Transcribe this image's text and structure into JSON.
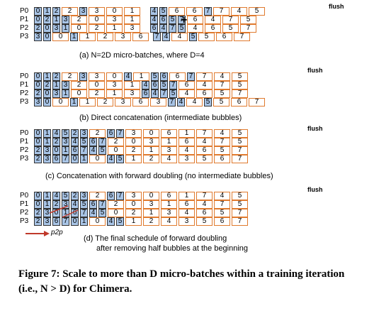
{
  "panels": [
    {
      "caption": "(a) N=2D micro-batches, where D=4",
      "flush": "flush",
      "row_labels": [
        "P0",
        "P1",
        "P2",
        "P3"
      ],
      "plus": "+",
      "rows": [
        [
          [
            "0",
            "b"
          ],
          [
            "1",
            "b"
          ],
          [
            "2",
            "b"
          ],
          [
            "2",
            "o"
          ],
          [
            "3",
            "b"
          ],
          [
            "3",
            "o"
          ],
          [
            "0",
            "o"
          ],
          [
            "1",
            "o"
          ],
          [
            "4",
            "b"
          ],
          [
            "5",
            "b"
          ],
          [
            "6",
            "o"
          ],
          [
            "6",
            "o"
          ],
          [
            "7",
            "b"
          ],
          [
            "7",
            "o"
          ],
          [
            "4",
            "o"
          ],
          [
            "5",
            "o"
          ]
        ],
        [
          [
            "0",
            "b"
          ],
          [
            "2",
            "b"
          ],
          [
            "1",
            "b"
          ],
          [
            "3",
            "b"
          ],
          [
            "2",
            "o"
          ],
          [
            "0",
            "o"
          ],
          [
            "3",
            "o"
          ],
          [
            "1",
            "o"
          ],
          [
            "4",
            "b"
          ],
          [
            "6",
            "b"
          ],
          [
            "5",
            "b"
          ],
          [
            "7",
            "b"
          ],
          [
            "6",
            "o"
          ],
          [
            "4",
            "o"
          ],
          [
            "7",
            "o"
          ],
          [
            "5",
            "o"
          ]
        ],
        [
          [
            "2",
            "b"
          ],
          [
            "0",
            "b"
          ],
          [
            "3",
            "b"
          ],
          [
            "1",
            "b"
          ],
          [
            "0",
            "o"
          ],
          [
            "2",
            "o"
          ],
          [
            "1",
            "o"
          ],
          [
            "3",
            "o"
          ],
          [
            "6",
            "b"
          ],
          [
            "4",
            "b"
          ],
          [
            "7",
            "b"
          ],
          [
            "5",
            "b"
          ],
          [
            "4",
            "o"
          ],
          [
            "6",
            "o"
          ],
          [
            "5",
            "o"
          ],
          [
            "7",
            "o"
          ]
        ],
        [
          [
            "3",
            "b"
          ],
          [
            "0",
            "b"
          ],
          [
            "0",
            "o"
          ],
          [
            "1",
            "b"
          ],
          [
            "1",
            "o"
          ],
          [
            "2",
            "o"
          ],
          [
            "3",
            "o"
          ],
          [
            "6",
            "o"
          ],
          [
            "7",
            "b"
          ],
          [
            "4",
            "b"
          ],
          [
            "4",
            "o"
          ],
          [
            "5",
            "b"
          ],
          [
            "5",
            "o"
          ],
          [
            "6",
            "o"
          ],
          [
            "7",
            "o"
          ]
        ]
      ]
    },
    {
      "caption": "(b) Direct concatenation (intermediate bubbles)",
      "flush": "flush",
      "row_labels": [
        "P0",
        "P1",
        "P2",
        "P3"
      ],
      "rows": [
        [
          [
            "0",
            "b"
          ],
          [
            "1",
            "b"
          ],
          [
            "2",
            "b"
          ],
          [
            "2",
            "o"
          ],
          [
            "3",
            "b"
          ],
          [
            "3",
            "o"
          ],
          [
            "0",
            "o"
          ],
          [
            "4",
            "b"
          ],
          [
            "1",
            "o"
          ],
          [
            "5",
            "b"
          ],
          [
            "6",
            "b"
          ],
          [
            "6",
            "o"
          ],
          [
            "7",
            "b"
          ],
          [
            "7",
            "o"
          ],
          [
            "4",
            "o"
          ],
          [
            "5",
            "o"
          ]
        ],
        [
          [
            "0",
            "b"
          ],
          [
            "2",
            "b"
          ],
          [
            "1",
            "b"
          ],
          [
            "3",
            "b"
          ],
          [
            "2",
            "o"
          ],
          [
            "0",
            "o"
          ],
          [
            "3",
            "o"
          ],
          [
            "1",
            "o"
          ],
          [
            "4",
            "b"
          ],
          [
            "6",
            "b"
          ],
          [
            "5",
            "b"
          ],
          [
            "7",
            "b"
          ],
          [
            "6",
            "o"
          ],
          [
            "4",
            "o"
          ],
          [
            "7",
            "o"
          ],
          [
            "5",
            "o"
          ]
        ],
        [
          [
            "2",
            "b"
          ],
          [
            "0",
            "b"
          ],
          [
            "3",
            "b"
          ],
          [
            "1",
            "b"
          ],
          [
            "0",
            "o"
          ],
          [
            "2",
            "o"
          ],
          [
            "1",
            "o"
          ],
          [
            "3",
            "o"
          ],
          [
            "6",
            "b"
          ],
          [
            "4",
            "b"
          ],
          [
            "7",
            "b"
          ],
          [
            "5",
            "b"
          ],
          [
            "4",
            "o"
          ],
          [
            "6",
            "o"
          ],
          [
            "5",
            "o"
          ],
          [
            "7",
            "o"
          ]
        ],
        [
          [
            "3",
            "b"
          ],
          [
            "0",
            "b"
          ],
          [
            "0",
            "o"
          ],
          [
            "1",
            "b"
          ],
          [
            "1",
            "o"
          ],
          [
            "2",
            "o"
          ],
          [
            "3",
            "o"
          ],
          [
            "6",
            "o"
          ],
          [
            "3",
            "o"
          ],
          [
            "7",
            "b"
          ],
          [
            "4",
            "b"
          ],
          [
            "4",
            "o"
          ],
          [
            "5",
            "b"
          ],
          [
            "5",
            "o"
          ],
          [
            "6",
            "o"
          ],
          [
            "7",
            "o"
          ]
        ]
      ]
    },
    {
      "caption": "(c) Concatenation with forward doubling (no intermediate bubbles)",
      "flush": "flush",
      "row_labels": [
        "P0",
        "P1",
        "P2",
        "P3"
      ],
      "rows": [
        [
          [
            "0",
            "b"
          ],
          [
            "1",
            "b"
          ],
          [
            "4",
            "b"
          ],
          [
            "5",
            "b"
          ],
          [
            "2",
            "b"
          ],
          [
            "3",
            "b"
          ],
          [
            "2",
            "o"
          ],
          [
            "6",
            "b"
          ],
          [
            "7",
            "b"
          ],
          [
            "3",
            "o"
          ],
          [
            "0",
            "o"
          ],
          [
            "6",
            "o"
          ],
          [
            "1",
            "o"
          ],
          [
            "7",
            "o"
          ],
          [
            "4",
            "o"
          ],
          [
            "5",
            "o"
          ]
        ],
        [
          [
            "0",
            "b"
          ],
          [
            "1",
            "b"
          ],
          [
            "2",
            "b"
          ],
          [
            "3",
            "b"
          ],
          [
            "4",
            "b"
          ],
          [
            "5",
            "b"
          ],
          [
            "6",
            "b"
          ],
          [
            "7",
            "b"
          ],
          [
            "2",
            "o"
          ],
          [
            "0",
            "o"
          ],
          [
            "3",
            "o"
          ],
          [
            "1",
            "o"
          ],
          [
            "6",
            "o"
          ],
          [
            "4",
            "o"
          ],
          [
            "7",
            "o"
          ],
          [
            "5",
            "o"
          ]
        ],
        [
          [
            "2",
            "b"
          ],
          [
            "3",
            "b"
          ],
          [
            "0",
            "b"
          ],
          [
            "1",
            "b"
          ],
          [
            "6",
            "b"
          ],
          [
            "7",
            "b"
          ],
          [
            "4",
            "b"
          ],
          [
            "5",
            "b"
          ],
          [
            "0",
            "o"
          ],
          [
            "2",
            "o"
          ],
          [
            "1",
            "o"
          ],
          [
            "3",
            "o"
          ],
          [
            "4",
            "o"
          ],
          [
            "6",
            "o"
          ],
          [
            "5",
            "o"
          ],
          [
            "7",
            "o"
          ]
        ],
        [
          [
            "2",
            "b"
          ],
          [
            "3",
            "b"
          ],
          [
            "6",
            "b"
          ],
          [
            "7",
            "b"
          ],
          [
            "0",
            "b"
          ],
          [
            "1",
            "b"
          ],
          [
            "0",
            "o"
          ],
          [
            "4",
            "b"
          ],
          [
            "5",
            "b"
          ],
          [
            "1",
            "o"
          ],
          [
            "2",
            "o"
          ],
          [
            "4",
            "o"
          ],
          [
            "3",
            "o"
          ],
          [
            "5",
            "o"
          ],
          [
            "6",
            "o"
          ],
          [
            "7",
            "o"
          ]
        ]
      ]
    },
    {
      "caption": "(d) The final schedule of forward doubling",
      "caption2": "after removing half bubbles at the beginning",
      "flush": "flush",
      "p2p_label": "p2p",
      "row_labels": [
        "P0",
        "P1",
        "P2",
        "P3"
      ],
      "rows": [
        [
          [
            "0",
            "b"
          ],
          [
            "1",
            "b"
          ],
          [
            "4",
            "b"
          ],
          [
            "5",
            "b"
          ],
          [
            "2",
            "b"
          ],
          [
            "3",
            "b"
          ],
          [
            "2",
            "o"
          ],
          [
            "6",
            "b"
          ],
          [
            "7",
            "b"
          ],
          [
            "3",
            "o"
          ],
          [
            "0",
            "o"
          ],
          [
            "6",
            "o"
          ],
          [
            "1",
            "o"
          ],
          [
            "7",
            "o"
          ],
          [
            "4",
            "o"
          ],
          [
            "5",
            "o"
          ]
        ],
        [
          [
            "0",
            "b"
          ],
          [
            "1",
            "b"
          ],
          [
            "2",
            "b"
          ],
          [
            "3",
            "b"
          ],
          [
            "4",
            "b"
          ],
          [
            "5",
            "b"
          ],
          [
            "6",
            "b"
          ],
          [
            "7",
            "b"
          ],
          [
            "2",
            "o"
          ],
          [
            "0",
            "o"
          ],
          [
            "3",
            "o"
          ],
          [
            "1",
            "o"
          ],
          [
            "6",
            "o"
          ],
          [
            "4",
            "o"
          ],
          [
            "7",
            "o"
          ],
          [
            "5",
            "o"
          ]
        ],
        [
          [
            "2",
            "b"
          ],
          [
            "3",
            "b"
          ],
          [
            "0",
            "b"
          ],
          [
            "1",
            "b"
          ],
          [
            "6",
            "b"
          ],
          [
            "7",
            "b"
          ],
          [
            "4",
            "b"
          ],
          [
            "5",
            "b"
          ],
          [
            "0",
            "o"
          ],
          [
            "2",
            "o"
          ],
          [
            "1",
            "o"
          ],
          [
            "3",
            "o"
          ],
          [
            "4",
            "o"
          ],
          [
            "6",
            "o"
          ],
          [
            "5",
            "o"
          ],
          [
            "7",
            "o"
          ]
        ],
        [
          [
            "2",
            "b"
          ],
          [
            "3",
            "b"
          ],
          [
            "6",
            "b"
          ],
          [
            "7",
            "b"
          ],
          [
            "0",
            "b"
          ],
          [
            "1",
            "b"
          ],
          [
            "0",
            "o"
          ],
          [
            "4",
            "b"
          ],
          [
            "5",
            "b"
          ],
          [
            "1",
            "o"
          ],
          [
            "2",
            "o"
          ],
          [
            "4",
            "o"
          ],
          [
            "3",
            "o"
          ],
          [
            "5",
            "o"
          ],
          [
            "6",
            "o"
          ],
          [
            "7",
            "o"
          ]
        ]
      ]
    }
  ],
  "figure_caption": "Figure 7: Scale to more than D micro-batches within a training iteration (i.e., N > D) for Chimera."
}
